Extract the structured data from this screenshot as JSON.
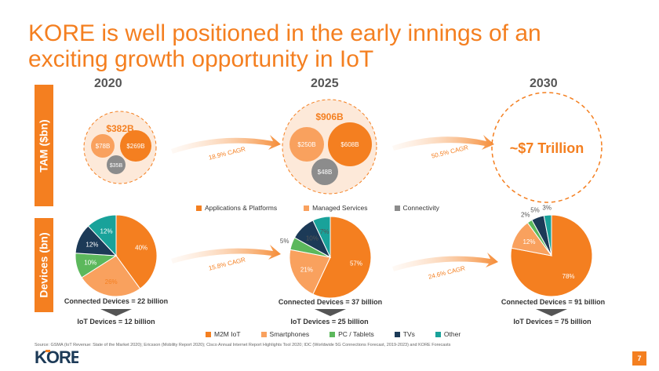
{
  "title": "KORE is well positioned in the early innings of an exciting growth opportunity in IoT",
  "years": [
    "2020",
    "2025",
    "2030"
  ],
  "side_labels": {
    "tam": "TAM ($bn)",
    "devices": "Devices (bn)"
  },
  "tam": {
    "y2020": {
      "total": "$382B",
      "apps": "$78B",
      "managed": "$269B",
      "conn": "$35B"
    },
    "y2025": {
      "total": "$906B",
      "apps": "$250B",
      "managed": "$608B",
      "conn": "$48B"
    },
    "y2030": {
      "total": "~$7 Trillion"
    }
  },
  "cagr": {
    "tam_1": "18.9% CAGR",
    "tam_2": "50.5% CAGR",
    "dev_1": "15.8% CAGR",
    "dev_2": "24.6% CAGR"
  },
  "tam_legend": [
    {
      "label": "Applications & Platforms",
      "color": "#f47f20"
    },
    {
      "label": "Managed Services",
      "color": "#f9a15e"
    },
    {
      "label": "Connectivity",
      "color": "#8c8c8c"
    }
  ],
  "devices": {
    "y2020": {
      "connected": "Connected Devices = 22 billion",
      "iot": "IoT Devices = 12 billion"
    },
    "y2025": {
      "connected": "Connected Devices = 37 billion",
      "iot": "IoT Devices = 25 billion"
    },
    "y2030": {
      "connected": "Connected Devices = 91 billion",
      "iot": "IoT Devices = 75 billion"
    }
  },
  "device_legend": [
    {
      "label": "M2M IoT",
      "color": "#f47f20"
    },
    {
      "label": "Smartphones",
      "color": "#f9a15e"
    },
    {
      "label": "PC / Tablets",
      "color": "#5cb85c"
    },
    {
      "label": "TVs",
      "color": "#1c3a57"
    },
    {
      "label": "Other",
      "color": "#19a29a"
    }
  ],
  "chart_data": [
    {
      "type": "pie",
      "categories": [
        "M2M IoT",
        "Smartphones",
        "PC / Tablets",
        "TVs",
        "Other"
      ],
      "values": [
        40,
        26,
        10,
        12,
        12
      ],
      "labels": [
        "40%",
        "26%",
        "10%",
        "12%",
        "12%"
      ]
    },
    {
      "type": "pie",
      "categories": [
        "M2M IoT",
        "Smartphones",
        "PC / Tablets",
        "TVs",
        "Other"
      ],
      "values": [
        57,
        21,
        5,
        10,
        7
      ],
      "labels": [
        "57%",
        "21%",
        "5%",
        "10%",
        "7%"
      ]
    },
    {
      "type": "pie",
      "categories": [
        "M2M IoT",
        "Smartphones",
        "PC / Tablets",
        "TVs",
        "Other"
      ],
      "values": [
        78,
        12,
        2,
        5,
        3
      ],
      "labels": [
        "78%",
        "12%",
        "2%",
        "5%",
        "3%"
      ]
    }
  ],
  "source": "Source: GSMA (IoT Revenue: State of the Market 2020); Ericsson (Mobility Report 2020); Cisco Annual Internet Report Highlights Tool 2020; IDC (Worldwide 5G Connections Forecast, 2019-2023) and KORE Forecasts",
  "logo": "KORE",
  "page_number": "7"
}
